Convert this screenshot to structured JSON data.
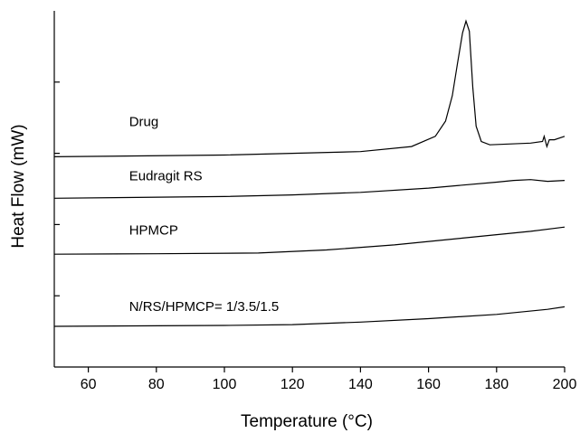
{
  "chart_data": {
    "type": "line",
    "title": "",
    "xlabel": "Temperature (°C)",
    "ylabel": "Heat Flow (mW)",
    "xlim": [
      50,
      200
    ],
    "xticks": [
      60,
      80,
      100,
      120,
      140,
      160,
      180,
      200
    ],
    "y_tick_count": 4,
    "y_tick_labels_shown": false,
    "grid": false,
    "legend": "inline labels",
    "series": [
      {
        "name": "Drug",
        "label_at": [
          72,
          14.2
        ],
        "points": [
          [
            50,
            12.4
          ],
          [
            100,
            12.5
          ],
          [
            140,
            12.7
          ],
          [
            155,
            13.0
          ],
          [
            162,
            13.6
          ],
          [
            165,
            14.5
          ],
          [
            167,
            16.0
          ],
          [
            168.5,
            17.9
          ],
          [
            170,
            19.7
          ],
          [
            171,
            20.4
          ],
          [
            172,
            19.8
          ],
          [
            173,
            16.5
          ],
          [
            174,
            14.2
          ],
          [
            175.5,
            13.3
          ],
          [
            178,
            13.1
          ],
          [
            190,
            13.2
          ],
          [
            193.5,
            13.3
          ],
          [
            194,
            13.6
          ],
          [
            194.8,
            13.0
          ],
          [
            195.5,
            13.4
          ],
          [
            197,
            13.4
          ],
          [
            200,
            13.6
          ]
        ]
      },
      {
        "name": "Eudragit RS",
        "label_at": [
          72,
          11.0
        ],
        "points": [
          [
            50,
            9.95
          ],
          [
            100,
            10.05
          ],
          [
            120,
            10.15
          ],
          [
            140,
            10.3
          ],
          [
            160,
            10.55
          ],
          [
            180,
            10.9
          ],
          [
            185,
            11.0
          ],
          [
            190,
            11.05
          ],
          [
            195,
            10.95
          ],
          [
            200,
            11.0
          ]
        ]
      },
      {
        "name": "HPMCP",
        "label_at": [
          72,
          7.8
        ],
        "points": [
          [
            50,
            6.65
          ],
          [
            80,
            6.68
          ],
          [
            110,
            6.72
          ],
          [
            130,
            6.9
          ],
          [
            150,
            7.2
          ],
          [
            170,
            7.6
          ],
          [
            190,
            8.0
          ],
          [
            200,
            8.25
          ]
        ]
      },
      {
        "name": "N/RS/HPMCP= 1/3.5/1.5",
        "label_at": [
          72,
          3.3
        ],
        "points": [
          [
            50,
            2.4
          ],
          [
            100,
            2.45
          ],
          [
            120,
            2.5
          ],
          [
            140,
            2.65
          ],
          [
            160,
            2.85
          ],
          [
            180,
            3.1
          ],
          [
            195,
            3.4
          ],
          [
            200,
            3.55
          ]
        ]
      }
    ]
  }
}
